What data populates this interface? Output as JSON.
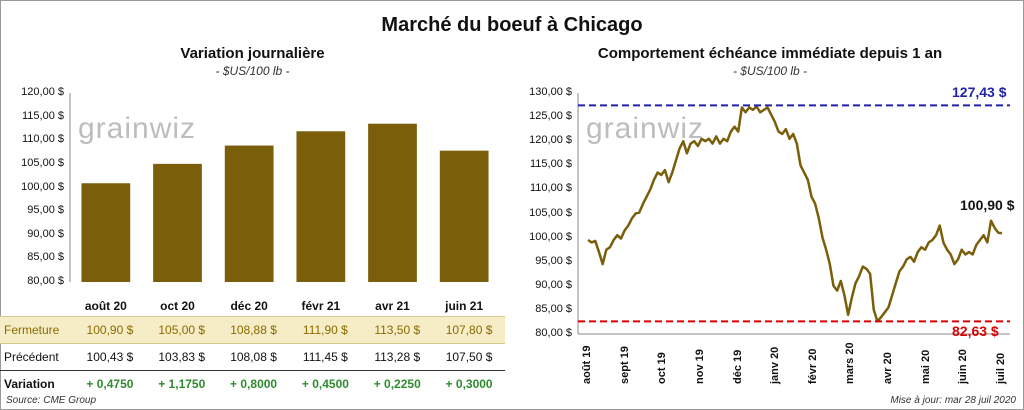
{
  "header": {
    "title": "Marché du boeuf à Chicago",
    "left_title": "Variation  journalière",
    "left_units": "- $US/100 lb -",
    "right_title": "Comportement  échéance immédiate depuis 1 an",
    "right_units": "- $US/100 lb -",
    "brand": "grainwiz"
  },
  "footer": {
    "source": "Source: CME Group",
    "updated": "Mise à jour: mar 28 juil 2020"
  },
  "table": {
    "rows": [
      {
        "label": "Fermeture",
        "values": [
          "100,90  $",
          "105,00  $",
          "108,88  $",
          "111,90  $",
          "113,50  $",
          "107,80  $"
        ]
      },
      {
        "label": "Précédent",
        "values": [
          "100,43  $",
          "103,83  $",
          "108,08  $",
          "111,45  $",
          "113,28  $",
          "107,50  $"
        ]
      },
      {
        "label": "Variation",
        "values": [
          "+ 0,4750",
          "+ 1,1750",
          "+ 0,8000",
          "+ 0,4500",
          "+ 0,2250",
          "+ 0,3000"
        ]
      }
    ]
  },
  "colors": {
    "bar": "#7a5e0a",
    "line": "#7a5e0a",
    "max_line": "#2222aa",
    "min_line": "#dd0000"
  },
  "chart_data": [
    {
      "type": "bar",
      "title": "Variation  journalière",
      "ylabel": "- $US/100 lb -",
      "categories": [
        "août 20",
        "oct 20",
        "déc 20",
        "févr 21",
        "avr 21",
        "juin 21"
      ],
      "values": [
        100.9,
        105.0,
        108.88,
        111.9,
        113.5,
        107.8
      ],
      "ylim": [
        80,
        120
      ],
      "yticks": [
        "80,00 $",
        "85,00 $",
        "90,00 $",
        "95,00 $",
        "100,00 $",
        "105,00 $",
        "110,00 $",
        "115,00 $",
        "120,00 $"
      ]
    },
    {
      "type": "line",
      "title": "Comportement  échéance immédiate depuis 1 an",
      "ylabel": "- $US/100 lb -",
      "x_labels": [
        "août 19",
        "sept 19",
        "oct 19",
        "nov 19",
        "déc 19",
        "janv 20",
        "févr 20",
        "mars 20",
        "avr 20",
        "mai 20",
        "juin 20",
        "juil 20"
      ],
      "ylim": [
        80,
        130
      ],
      "yticks": [
        "80,00 $",
        "85,00 $",
        "90,00 $",
        "95,00 $",
        "100,00 $",
        "105,00 $",
        "110,00 $",
        "115,00 $",
        "120,00 $",
        "125,00 $",
        "130,00 $"
      ],
      "values": [
        99.5,
        99.0,
        99.3,
        97.0,
        94.5,
        97.5,
        98.0,
        99.5,
        100.5,
        99.8,
        101.5,
        102.5,
        104.0,
        105.0,
        105.2,
        107.0,
        108.5,
        110.0,
        112.0,
        113.5,
        113.0,
        114.0,
        111.5,
        113.5,
        116.0,
        118.5,
        120.0,
        117.5,
        119.5,
        120.0,
        119.0,
        120.5,
        120.0,
        120.5,
        119.5,
        121.0,
        119.5,
        120.5,
        120.0,
        122.0,
        123.0,
        122.0,
        127.0,
        126.0,
        127.0,
        126.5,
        127.2,
        126.0,
        126.5,
        127.0,
        125.5,
        124.0,
        122.0,
        121.5,
        122.5,
        120.5,
        121.5,
        119.5,
        115.0,
        113.5,
        112.0,
        108.5,
        107.0,
        104.0,
        100.0,
        97.5,
        94.5,
        90.0,
        89.0,
        91.0,
        88.0,
        84.0,
        87.5,
        90.5,
        92.0,
        94.0,
        93.5,
        92.5,
        85.0,
        82.63,
        83.5,
        84.5,
        85.5,
        88.0,
        90.5,
        93.0,
        94.0,
        95.5,
        96.0,
        95.0,
        97.0,
        98.0,
        97.5,
        99.0,
        99.5,
        100.5,
        102.5,
        99.0,
        97.5,
        96.5,
        94.5,
        95.5,
        97.5,
        96.5,
        97.0,
        96.5,
        98.5,
        99.5,
        100.5,
        99.0,
        103.5,
        102.0,
        101.0,
        100.9
      ],
      "annotations": [
        {
          "label": "127,43 $",
          "value": 127.43,
          "kind": "max"
        },
        {
          "label": "82,63 $",
          "value": 82.63,
          "kind": "min"
        },
        {
          "label": "100,90 $",
          "value": 100.9,
          "kind": "last"
        }
      ]
    }
  ]
}
